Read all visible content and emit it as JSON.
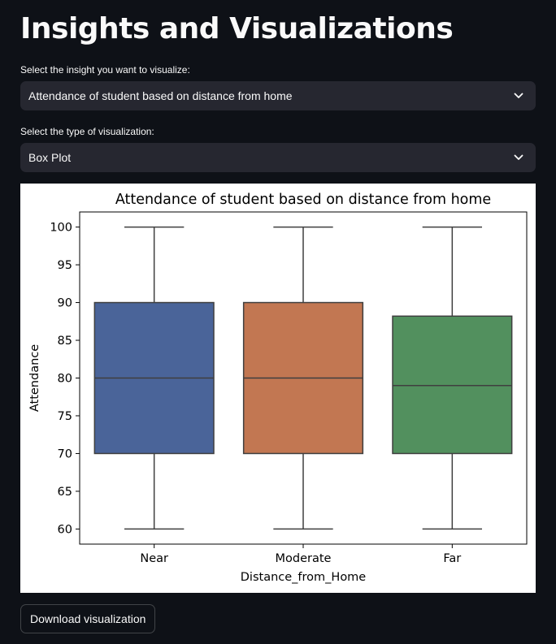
{
  "page": {
    "title": "Insights and Visualizations"
  },
  "insight_select": {
    "label": "Select the insight you want to visualize:",
    "value": "Attendance of student based on distance from home",
    "icon": "chevron-down-icon"
  },
  "viz_select": {
    "label": "Select the type of visualization:",
    "value": "Box Plot",
    "icon": "chevron-down-icon"
  },
  "download_button": {
    "label": "Download visualization"
  },
  "chart_data": {
    "type": "box",
    "title": "Attendance of student based on distance from home",
    "xlabel": "Distance_from_Home",
    "ylabel": "Attendance",
    "ylim": [
      58,
      102
    ],
    "yticks": [
      60,
      65,
      70,
      75,
      80,
      85,
      90,
      95,
      100
    ],
    "grid": false,
    "categories": [
      "Near",
      "Moderate",
      "Far"
    ],
    "boxes": [
      {
        "category": "Near",
        "min": 60,
        "q1": 70,
        "median": 80,
        "q3": 90,
        "max": 100,
        "color": "#4a6499"
      },
      {
        "category": "Moderate",
        "min": 60,
        "q1": 70,
        "median": 80,
        "q3": 90,
        "max": 100,
        "color": "#c27752"
      },
      {
        "category": "Far",
        "min": 60,
        "q1": 70,
        "median": 79,
        "q3": 88.2,
        "max": 100,
        "color": "#52905e"
      }
    ]
  }
}
